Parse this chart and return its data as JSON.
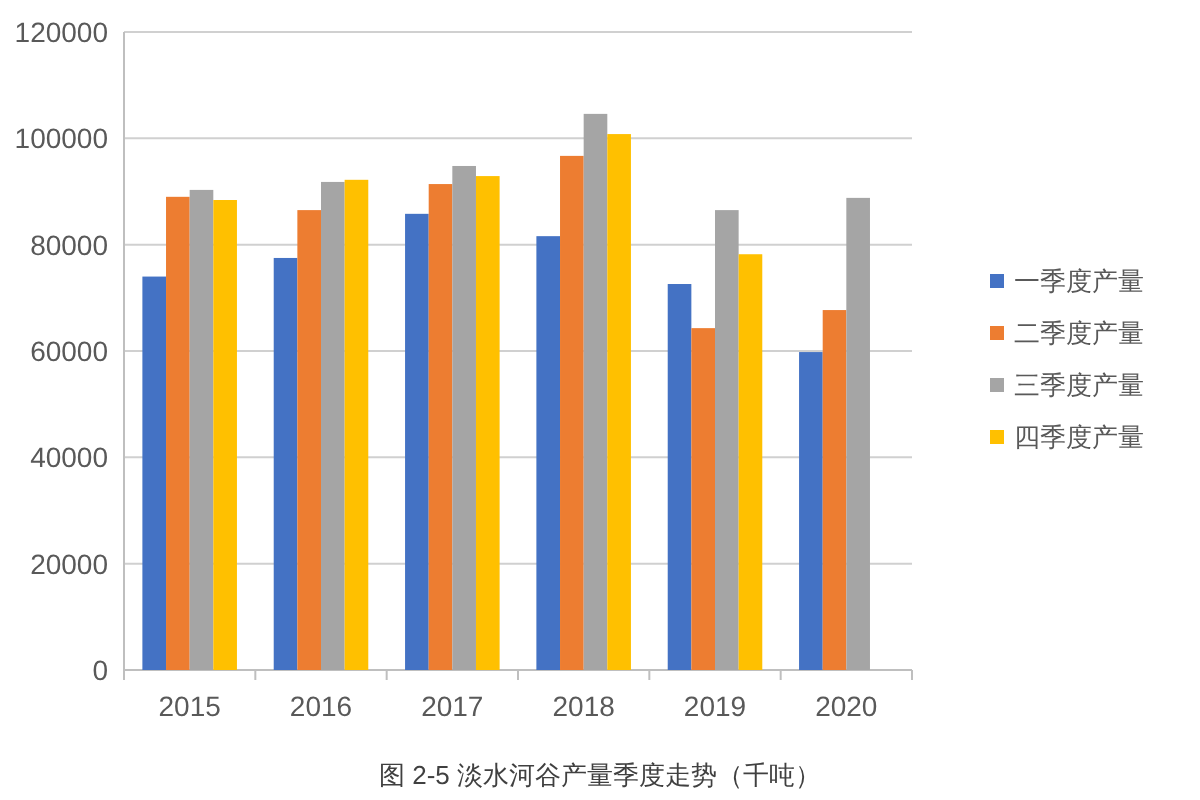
{
  "chart_data": {
    "type": "bar",
    "categories": [
      "2015",
      "2016",
      "2017",
      "2018",
      "2019",
      "2020"
    ],
    "series": [
      {
        "name": "一季度产量",
        "color": "#4472c4",
        "values": [
          74000,
          77500,
          85800,
          81600,
          72600,
          59800
        ]
      },
      {
        "name": "二季度产量",
        "color": "#ed7d31",
        "values": [
          89000,
          86500,
          91400,
          96700,
          64300,
          67700
        ]
      },
      {
        "name": "三季度产量",
        "color": "#a5a5a5",
        "values": [
          90300,
          91800,
          94800,
          104600,
          86500,
          88800
        ]
      },
      {
        "name": "四季度产量",
        "color": "#ffc000",
        "values": [
          88400,
          92200,
          92900,
          100800,
          78200,
          null
        ]
      }
    ],
    "ylim": [
      0,
      120000
    ],
    "yticks": [
      0,
      20000,
      40000,
      60000,
      80000,
      100000,
      120000
    ],
    "grid": "y",
    "legend": "right",
    "annotations": [
      "图 2-5  淡水河谷产量季度走势（千吨）"
    ]
  }
}
